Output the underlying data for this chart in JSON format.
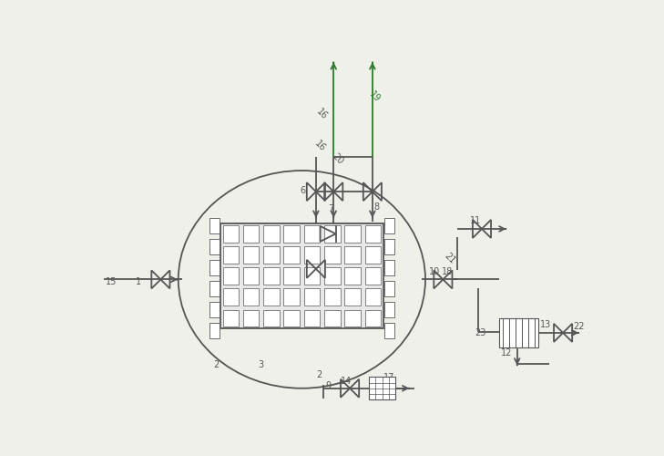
{
  "bg_color": "#f0f0eb",
  "line_color": "#555555",
  "green_color": "#2d7a2d",
  "fig_width": 7.29,
  "fig_height": 5.0,
  "dpi": 100
}
